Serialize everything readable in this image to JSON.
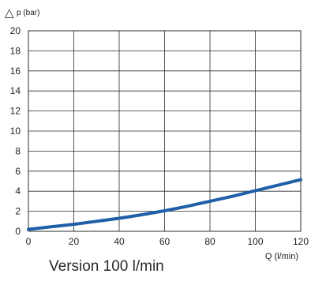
{
  "chart_data": {
    "type": "line",
    "ylabel": "p (bar)",
    "ylabel_symbol": "△",
    "xlabel": "Q (l/min)",
    "xlim": [
      0,
      120
    ],
    "ylim": [
      0,
      20
    ],
    "xticks": [
      "0",
      "20",
      "40",
      "60",
      "80",
      "100",
      "120"
    ],
    "yticks": [
      "0",
      "2",
      "4",
      "6",
      "8",
      "10",
      "12",
      "14",
      "16",
      "18",
      "20"
    ],
    "grid": true,
    "series": [
      {
        "color": "#1f5fa8",
        "points": [
          [
            0,
            0.2
          ],
          [
            10,
            0.45
          ],
          [
            20,
            0.7
          ],
          [
            30,
            1.0
          ],
          [
            40,
            1.3
          ],
          [
            50,
            1.65
          ],
          [
            60,
            2.05
          ],
          [
            70,
            2.5
          ],
          [
            80,
            3.0
          ],
          [
            90,
            3.5
          ],
          [
            100,
            4.05
          ],
          [
            110,
            4.6
          ],
          [
            120,
            5.15
          ]
        ]
      }
    ],
    "caption": "Version 100 l/min"
  }
}
